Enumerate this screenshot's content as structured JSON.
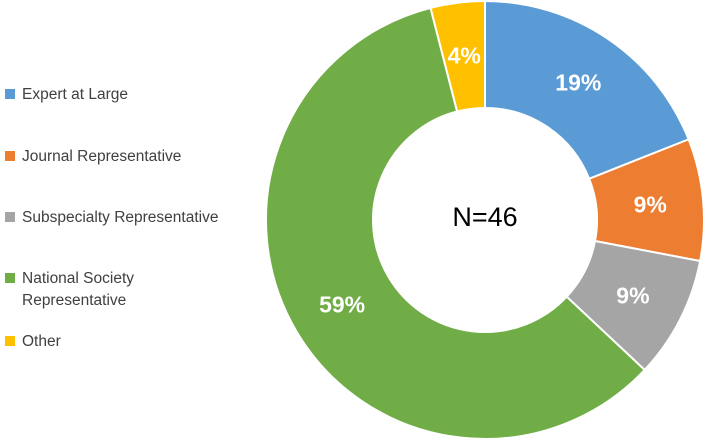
{
  "chart_data": {
    "type": "pie",
    "variant": "donut",
    "center_label": "N=46",
    "legend_position": "left",
    "categories": [
      "Expert at Large",
      "Journal Representative",
      "Subspecialty Representative",
      "National Society Representative",
      "Other"
    ],
    "values": [
      19,
      9,
      9,
      59,
      4
    ],
    "labels": [
      "19%",
      "9%",
      "9%",
      "59%",
      "4%"
    ],
    "colors": [
      "#5B9BD5",
      "#ED7D31",
      "#A5A5A5",
      "#70AD47",
      "#FFC000"
    ],
    "title": "",
    "legend_labels": [
      "Expert at Large",
      "Journal Representative",
      "Subspecialty Representative",
      "National Society\nRepresentative",
      "Other"
    ]
  }
}
